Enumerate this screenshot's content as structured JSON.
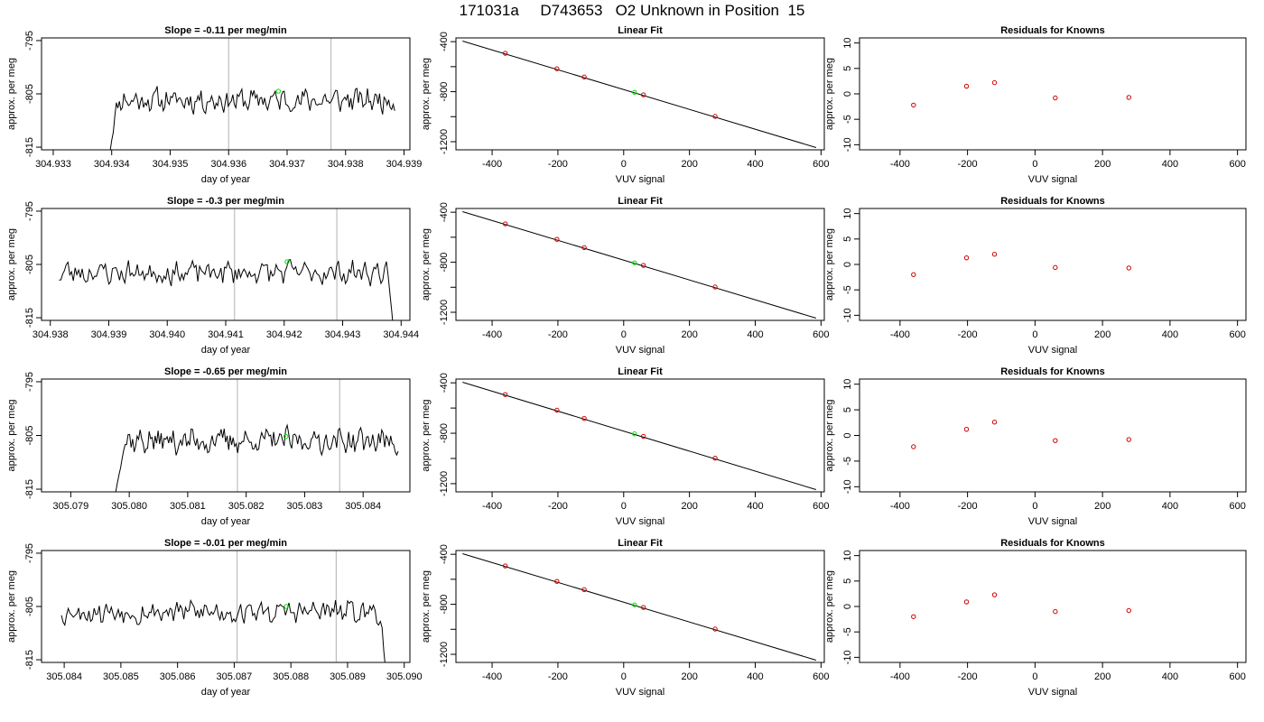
{
  "page_title": "171031a     D743653   O2 Unknown in Position  15",
  "colors": {
    "line": "#000000",
    "gridline": "#bebebe",
    "known_point": "#cc0000",
    "unknown_point": "#00dd00"
  },
  "chart_data": [
    {
      "type": "line",
      "title": "Slope =  -0.11  per meg/min",
      "xlabel": "day of year",
      "ylabel": "approx. per meg",
      "xlim": [
        304.9328,
        304.9391
      ],
      "ylim": [
        -815.5,
        -794.5
      ],
      "xticks": [
        304.933,
        304.934,
        304.935,
        304.936,
        304.937,
        304.938,
        304.939
      ],
      "yticks": [
        -795,
        -805,
        -815
      ],
      "x_start": 304.93395,
      "x_end": 304.93884,
      "seed": 11,
      "rise_pts": 6,
      "y_start": -817,
      "level": -806.2,
      "noise": 2.4,
      "vlines": [
        304.936,
        304.93775
      ],
      "marker": {
        "x": 304.93685,
        "y": -804.5
      }
    },
    {
      "type": "scatter",
      "title": "Linear Fit",
      "xlabel": "VUV signal",
      "ylabel": "approx. per meg",
      "xlim": [
        -510,
        610
      ],
      "ylim": [
        -1265,
        -370
      ],
      "xticks": [
        -400,
        -200,
        0,
        200,
        400,
        600
      ],
      "yticks": [
        -400,
        -800,
        -1200
      ],
      "yminor": [
        -600,
        -1000
      ],
      "fit_line": {
        "x": [
          -490,
          585
        ],
        "y": [
          -395,
          -1247
        ]
      },
      "knowns": [
        {
          "x": -360,
          "y": -493
        },
        {
          "x": -203,
          "y": -617
        },
        {
          "x": -120,
          "y": -683
        },
        {
          "x": 60,
          "y": -825
        },
        {
          "x": 278,
          "y": -998
        }
      ],
      "unknown": {
        "x": 33,
        "y": -805
      }
    },
    {
      "type": "scatter",
      "title": "Residuals for Knowns",
      "xlabel": "VUV signal",
      "ylabel": "approx. per meg",
      "xlim": [
        -520,
        625
      ],
      "ylim": [
        -11,
        11
      ],
      "xticks": [
        -400,
        -200,
        0,
        200,
        400,
        600
      ],
      "yticks": [
        10,
        5,
        0,
        -5,
        -10
      ],
      "points": [
        {
          "x": -360,
          "y": -2.2
        },
        {
          "x": -203,
          "y": 1.5
        },
        {
          "x": -120,
          "y": 2.2
        },
        {
          "x": 60,
          "y": -0.8
        },
        {
          "x": 278,
          "y": -0.7
        }
      ]
    },
    {
      "type": "line",
      "title": "Slope =  -0.3  per meg/min",
      "xlabel": "day of year",
      "ylabel": "approx. per meg",
      "xlim": [
        304.93785,
        304.94415
      ],
      "ylim": [
        -815.5,
        -794.5
      ],
      "xticks": [
        304.938,
        304.939,
        304.94,
        304.941,
        304.942,
        304.943,
        304.944
      ],
      "yticks": [
        -795,
        -805,
        -815
      ],
      "x_start": 304.93815,
      "x_end": 304.9439,
      "seed": 23,
      "fall_pts": 5,
      "y_end": -820,
      "level": -806.5,
      "noise": 2.4,
      "vlines": [
        304.94115,
        304.9429
      ],
      "marker": {
        "x": 304.94205,
        "y": -804.5
      }
    },
    {
      "type": "scatter",
      "title": "Linear Fit",
      "xlabel": "VUV signal",
      "ylabel": "approx. per meg",
      "xlim": [
        -510,
        610
      ],
      "ylim": [
        -1265,
        -370
      ],
      "xticks": [
        -400,
        -200,
        0,
        200,
        400,
        600
      ],
      "yticks": [
        -400,
        -800,
        -1200
      ],
      "yminor": [
        -600,
        -1000
      ],
      "fit_line": {
        "x": [
          -490,
          585
        ],
        "y": [
          -395,
          -1247
        ]
      },
      "knowns": [
        {
          "x": -360,
          "y": -493
        },
        {
          "x": -203,
          "y": -617
        },
        {
          "x": -120,
          "y": -683
        },
        {
          "x": 60,
          "y": -825
        },
        {
          "x": 278,
          "y": -998
        }
      ],
      "unknown": {
        "x": 33,
        "y": -805
      }
    },
    {
      "type": "scatter",
      "title": "Residuals for Knowns",
      "xlabel": "VUV signal",
      "ylabel": "approx. per meg",
      "xlim": [
        -520,
        625
      ],
      "ylim": [
        -11,
        11
      ],
      "xticks": [
        -400,
        -200,
        0,
        200,
        400,
        600
      ],
      "yticks": [
        10,
        5,
        0,
        -5,
        -10
      ],
      "points": [
        {
          "x": -360,
          "y": -2.0
        },
        {
          "x": -203,
          "y": 1.3
        },
        {
          "x": -120,
          "y": 2.0
        },
        {
          "x": 60,
          "y": -0.6
        },
        {
          "x": 278,
          "y": -0.7
        }
      ]
    },
    {
      "type": "line",
      "title": "Slope =  -0.65  per meg/min",
      "xlabel": "day of year",
      "ylabel": "approx. per meg",
      "xlim": [
        305.0785,
        305.0848
      ],
      "ylim": [
        -815.5,
        -794.5
      ],
      "xticks": [
        305.079,
        305.08,
        305.081,
        305.082,
        305.083,
        305.084
      ],
      "yticks": [
        -795,
        -805,
        -815
      ],
      "x_start": 305.07975,
      "x_end": 305.0846,
      "seed": 37,
      "rise_pts": 6,
      "y_start": -817,
      "level": -806.0,
      "noise": 2.6,
      "vlines": [
        305.08185,
        305.0836
      ],
      "marker": {
        "x": 305.08268,
        "y": -805.2
      }
    },
    {
      "type": "scatter",
      "title": "Linear Fit",
      "xlabel": "VUV signal",
      "ylabel": "approx. per meg",
      "xlim": [
        -510,
        610
      ],
      "ylim": [
        -1265,
        -370
      ],
      "xticks": [
        -400,
        -200,
        0,
        200,
        400,
        600
      ],
      "yticks": [
        -400,
        -800,
        -1200
      ],
      "yminor": [
        -600,
        -1000
      ],
      "fit_line": {
        "x": [
          -490,
          585
        ],
        "y": [
          -395,
          -1247
        ]
      },
      "knowns": [
        {
          "x": -360,
          "y": -493
        },
        {
          "x": -203,
          "y": -617
        },
        {
          "x": -120,
          "y": -683
        },
        {
          "x": 60,
          "y": -825
        },
        {
          "x": 278,
          "y": -998
        }
      ],
      "unknown": {
        "x": 33,
        "y": -805
      }
    },
    {
      "type": "scatter",
      "title": "Residuals for Knowns",
      "xlabel": "VUV signal",
      "ylabel": "approx. per meg",
      "xlim": [
        -520,
        625
      ],
      "ylim": [
        -11,
        11
      ],
      "xticks": [
        -400,
        -200,
        0,
        200,
        400,
        600
      ],
      "yticks": [
        10,
        5,
        0,
        -5,
        -10
      ],
      "points": [
        {
          "x": -360,
          "y": -2.2
        },
        {
          "x": -203,
          "y": 1.2
        },
        {
          "x": -120,
          "y": 2.6
        },
        {
          "x": 60,
          "y": -1.0
        },
        {
          "x": 278,
          "y": -0.8
        }
      ]
    },
    {
      "type": "line",
      "title": "Slope =  -0.01  per meg/min",
      "xlabel": "day of year",
      "ylabel": "approx. per meg",
      "xlim": [
        305.0836,
        305.0901
      ],
      "ylim": [
        -815.5,
        -794.5
      ],
      "xticks": [
        305.084,
        305.085,
        305.086,
        305.087,
        305.088,
        305.089,
        305.09
      ],
      "yticks": [
        -795,
        -805,
        -815
      ],
      "x_start": 305.08395,
      "x_end": 305.0897,
      "seed": 53,
      "fall_pts": 4,
      "y_end": -820,
      "level": -806.0,
      "noise": 2.4,
      "vlines": [
        305.08705,
        305.0888
      ],
      "marker": {
        "x": 305.08792,
        "y": -805.0
      }
    },
    {
      "type": "scatter",
      "title": "Linear Fit",
      "xlabel": "VUV signal",
      "ylabel": "approx. per meg",
      "xlim": [
        -510,
        610
      ],
      "ylim": [
        -1265,
        -370
      ],
      "xticks": [
        -400,
        -200,
        0,
        200,
        400,
        600
      ],
      "yticks": [
        -400,
        -800,
        -1200
      ],
      "yminor": [
        -600,
        -1000
      ],
      "fit_line": {
        "x": [
          -490,
          585
        ],
        "y": [
          -395,
          -1247
        ]
      },
      "knowns": [
        {
          "x": -360,
          "y": -493
        },
        {
          "x": -203,
          "y": -617
        },
        {
          "x": -120,
          "y": -683
        },
        {
          "x": 60,
          "y": -825
        },
        {
          "x": 278,
          "y": -998
        }
      ],
      "unknown": {
        "x": 33,
        "y": -805
      }
    },
    {
      "type": "scatter",
      "title": "Residuals for Knowns",
      "xlabel": "VUV signal",
      "ylabel": "approx. per meg",
      "xlim": [
        -520,
        625
      ],
      "ylim": [
        -11,
        11
      ],
      "xticks": [
        -400,
        -200,
        0,
        200,
        400,
        600
      ],
      "yticks": [
        10,
        5,
        0,
        -5,
        -10
      ],
      "points": [
        {
          "x": -360,
          "y": -2.0
        },
        {
          "x": -203,
          "y": 0.9
        },
        {
          "x": -120,
          "y": 2.3
        },
        {
          "x": 60,
          "y": -1.0
        },
        {
          "x": 278,
          "y": -0.8
        }
      ]
    }
  ]
}
